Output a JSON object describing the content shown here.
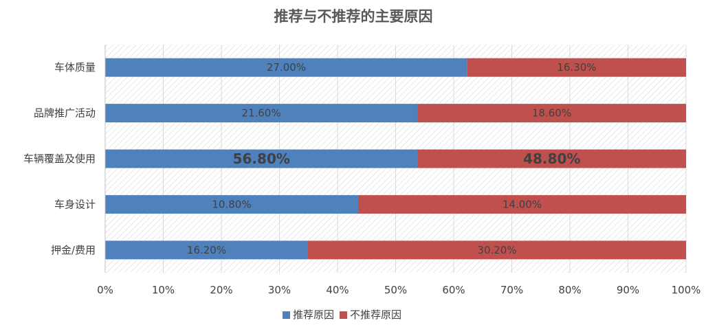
{
  "chart_data": {
    "type": "bar",
    "orientation": "horizontal",
    "stacked": "percent",
    "title": "推荐与不推荐的主要原因",
    "categories": [
      "车体质量",
      "品牌推广活动",
      "车辆覆盖及使用",
      "车身设计",
      "押金/费用"
    ],
    "series": [
      {
        "name": "推荐原因",
        "color": "#4f81bd",
        "values": [
          0.27,
          0.216,
          0.568,
          0.108,
          0.162
        ],
        "labels": [
          "27.00%",
          "21.60%",
          "56.80%",
          "10.80%",
          "16.20%"
        ]
      },
      {
        "name": "不推荐原因",
        "color": "#c0504d",
        "values": [
          0.163,
          0.186,
          0.488,
          0.14,
          0.302
        ],
        "labels": [
          "16.30%",
          "18.60%",
          "48.80%",
          "14.00%",
          "30.20%"
        ]
      }
    ],
    "emphasized_category": "车辆覆盖及使用",
    "x_ticks": [
      "0%",
      "10%",
      "20%",
      "30%",
      "40%",
      "50%",
      "60%",
      "70%",
      "80%",
      "90%",
      "100%"
    ],
    "xlim": [
      0,
      1
    ],
    "grid": true,
    "legend": "bottom"
  }
}
